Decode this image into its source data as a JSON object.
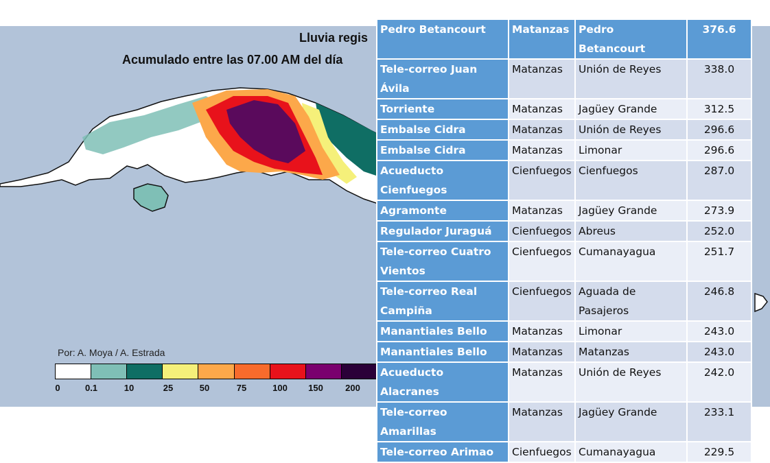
{
  "map": {
    "title_line1": "Lluvia regis",
    "title_line2": "Acumulado entre las 07.00 AM del día",
    "credit": "Por: A. Moya / A. Estrada",
    "legend": {
      "ticks": [
        "0",
        "0.1",
        "10",
        "25",
        "50",
        "75",
        "100",
        "150",
        "200"
      ],
      "colors": [
        "#ffffff",
        "#7fbfb6",
        "#0f6e64",
        "#f5f07a",
        "#fca84a",
        "#f86b2c",
        "#e8121b",
        "#7a006e",
        "#2b0038"
      ]
    },
    "colors": {
      "sea": "#b2c3d9",
      "land_dry": "#ffffff",
      "light": "#7fbfb6",
      "teal": "#0f6e64",
      "yellow": "#f5f07a",
      "orange": "#fca84a",
      "red": "#e8121b",
      "purple": "#5a0a5c"
    }
  },
  "table": {
    "header_color": "#5b9bd5",
    "rows": [
      {
        "station": "Pedro Betancourt",
        "province": "Matanzas",
        "municipality": "Pedro Betancourt",
        "value": "376.6"
      },
      {
        "station": "Tele-correo Juan Ávila",
        "province": "Matanzas",
        "municipality": "Unión de Reyes",
        "value": "338.0"
      },
      {
        "station": "Torriente",
        "province": "Matanzas",
        "municipality": "Jagüey Grande",
        "value": "312.5"
      },
      {
        "station": "Embalse Cidra",
        "province": "Matanzas",
        "municipality": "Unión de Reyes",
        "value": "296.6"
      },
      {
        "station": "Embalse Cidra",
        "province": "Matanzas",
        "municipality": "Limonar",
        "value": "296.6"
      },
      {
        "station": "Acueducto Cienfuegos",
        "province": "Cienfuegos",
        "municipality": "Cienfuegos",
        "value": "287.0"
      },
      {
        "station": "Agramonte",
        "province": "Matanzas",
        "municipality": "Jagüey Grande",
        "value": "273.9"
      },
      {
        "station": "Regulador Juraguá",
        "province": "Cienfuegos",
        "municipality": "Abreus",
        "value": "252.0"
      },
      {
        "station": "Tele-correo Cuatro Vientos",
        "province": "Cienfuegos",
        "municipality": "Cumanayagua",
        "value": "251.7"
      },
      {
        "station": "Tele-correo Real Campiña",
        "province": "Cienfuegos",
        "municipality": "Aguada de Pasajeros",
        "value": "246.8"
      },
      {
        "station": "Manantiales Bello",
        "province": "Matanzas",
        "municipality": "Limonar",
        "value": "243.0"
      },
      {
        "station": "Manantiales Bello",
        "province": "Matanzas",
        "municipality": "Matanzas",
        "value": "243.0"
      },
      {
        "station": "Acueducto Alacranes",
        "province": "Matanzas",
        "municipality": "Unión de Reyes",
        "value": "242.0"
      },
      {
        "station": "Tele-correo Amarillas",
        "province": "Matanzas",
        "municipality": "Jagüey Grande",
        "value": "233.1"
      },
      {
        "station": "Tele-correo Arimao",
        "province": "Cienfuegos",
        "municipality": "Cumanayagua",
        "value": "229.5"
      }
    ]
  }
}
